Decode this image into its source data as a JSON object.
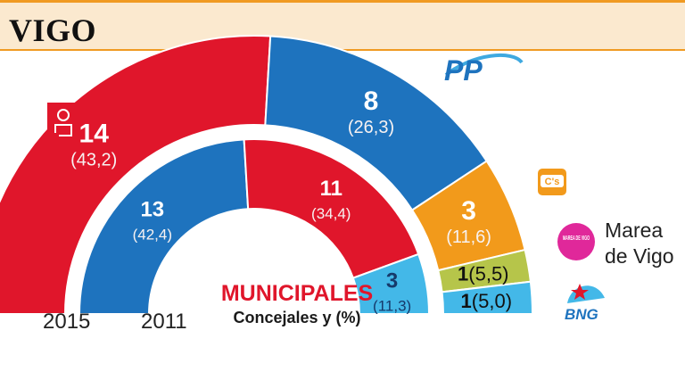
{
  "header": {
    "title": "VIGO"
  },
  "legend": {
    "title": "MUNICIPALES",
    "subtitle": "Concejales y (%)"
  },
  "parties": {
    "pp_logo": "PP",
    "cs_logo": "C's",
    "marea_logo": "MAREA DE VIGO",
    "marea_label_line1": "Marea",
    "marea_label_line2": "de Vigo",
    "bng_logo": "BNG"
  },
  "colors": {
    "psoe": "#e0162b",
    "pp": "#1e73be",
    "cs": "#f29a1b",
    "marea": "#b6c54a",
    "bng": "#43b8e8",
    "marea_logo": "#e0289a",
    "accent": "#f09a22",
    "header_bg": "#fbe9cf"
  },
  "chart_data": [
    {
      "type": "pie",
      "name": "2015",
      "title": "2015",
      "series": [
        {
          "party": "PSOE",
          "seats": 14,
          "seats_label": "14",
          "pct_label": "(43,2)",
          "percent": 43.2,
          "color": "#e0162b"
        },
        {
          "party": "PP",
          "seats": 8,
          "seats_label": "8",
          "pct_label": "(26,3)",
          "percent": 26.3,
          "color": "#1e73be"
        },
        {
          "party": "C's",
          "seats": 3,
          "seats_label": "3",
          "pct_label": "(11,6)",
          "percent": 11.6,
          "color": "#f29a1b"
        },
        {
          "party": "Marea de Vigo",
          "seats": 1,
          "seats_label": "1",
          "pct_label": "(5,5)",
          "percent": 5.5,
          "color": "#b6c54a"
        },
        {
          "party": "BNG",
          "seats": 1,
          "seats_label": "1",
          "pct_label": "(5,0)",
          "percent": 5.0,
          "color": "#43b8e8"
        }
      ]
    },
    {
      "type": "pie",
      "name": "2011",
      "title": "2011",
      "series": [
        {
          "party": "PP",
          "seats": 13,
          "seats_label": "13",
          "pct_label": "(42,4)",
          "percent": 42.4,
          "color": "#1e73be"
        },
        {
          "party": "PSOE",
          "seats": 11,
          "seats_label": "11",
          "pct_label": "(34,4)",
          "percent": 34.4,
          "color": "#e0162b"
        },
        {
          "party": "BNG",
          "seats": 3,
          "seats_label": "3",
          "pct_label": "(11,3)",
          "percent": 11.3,
          "color": "#43b8e8"
        }
      ]
    }
  ]
}
